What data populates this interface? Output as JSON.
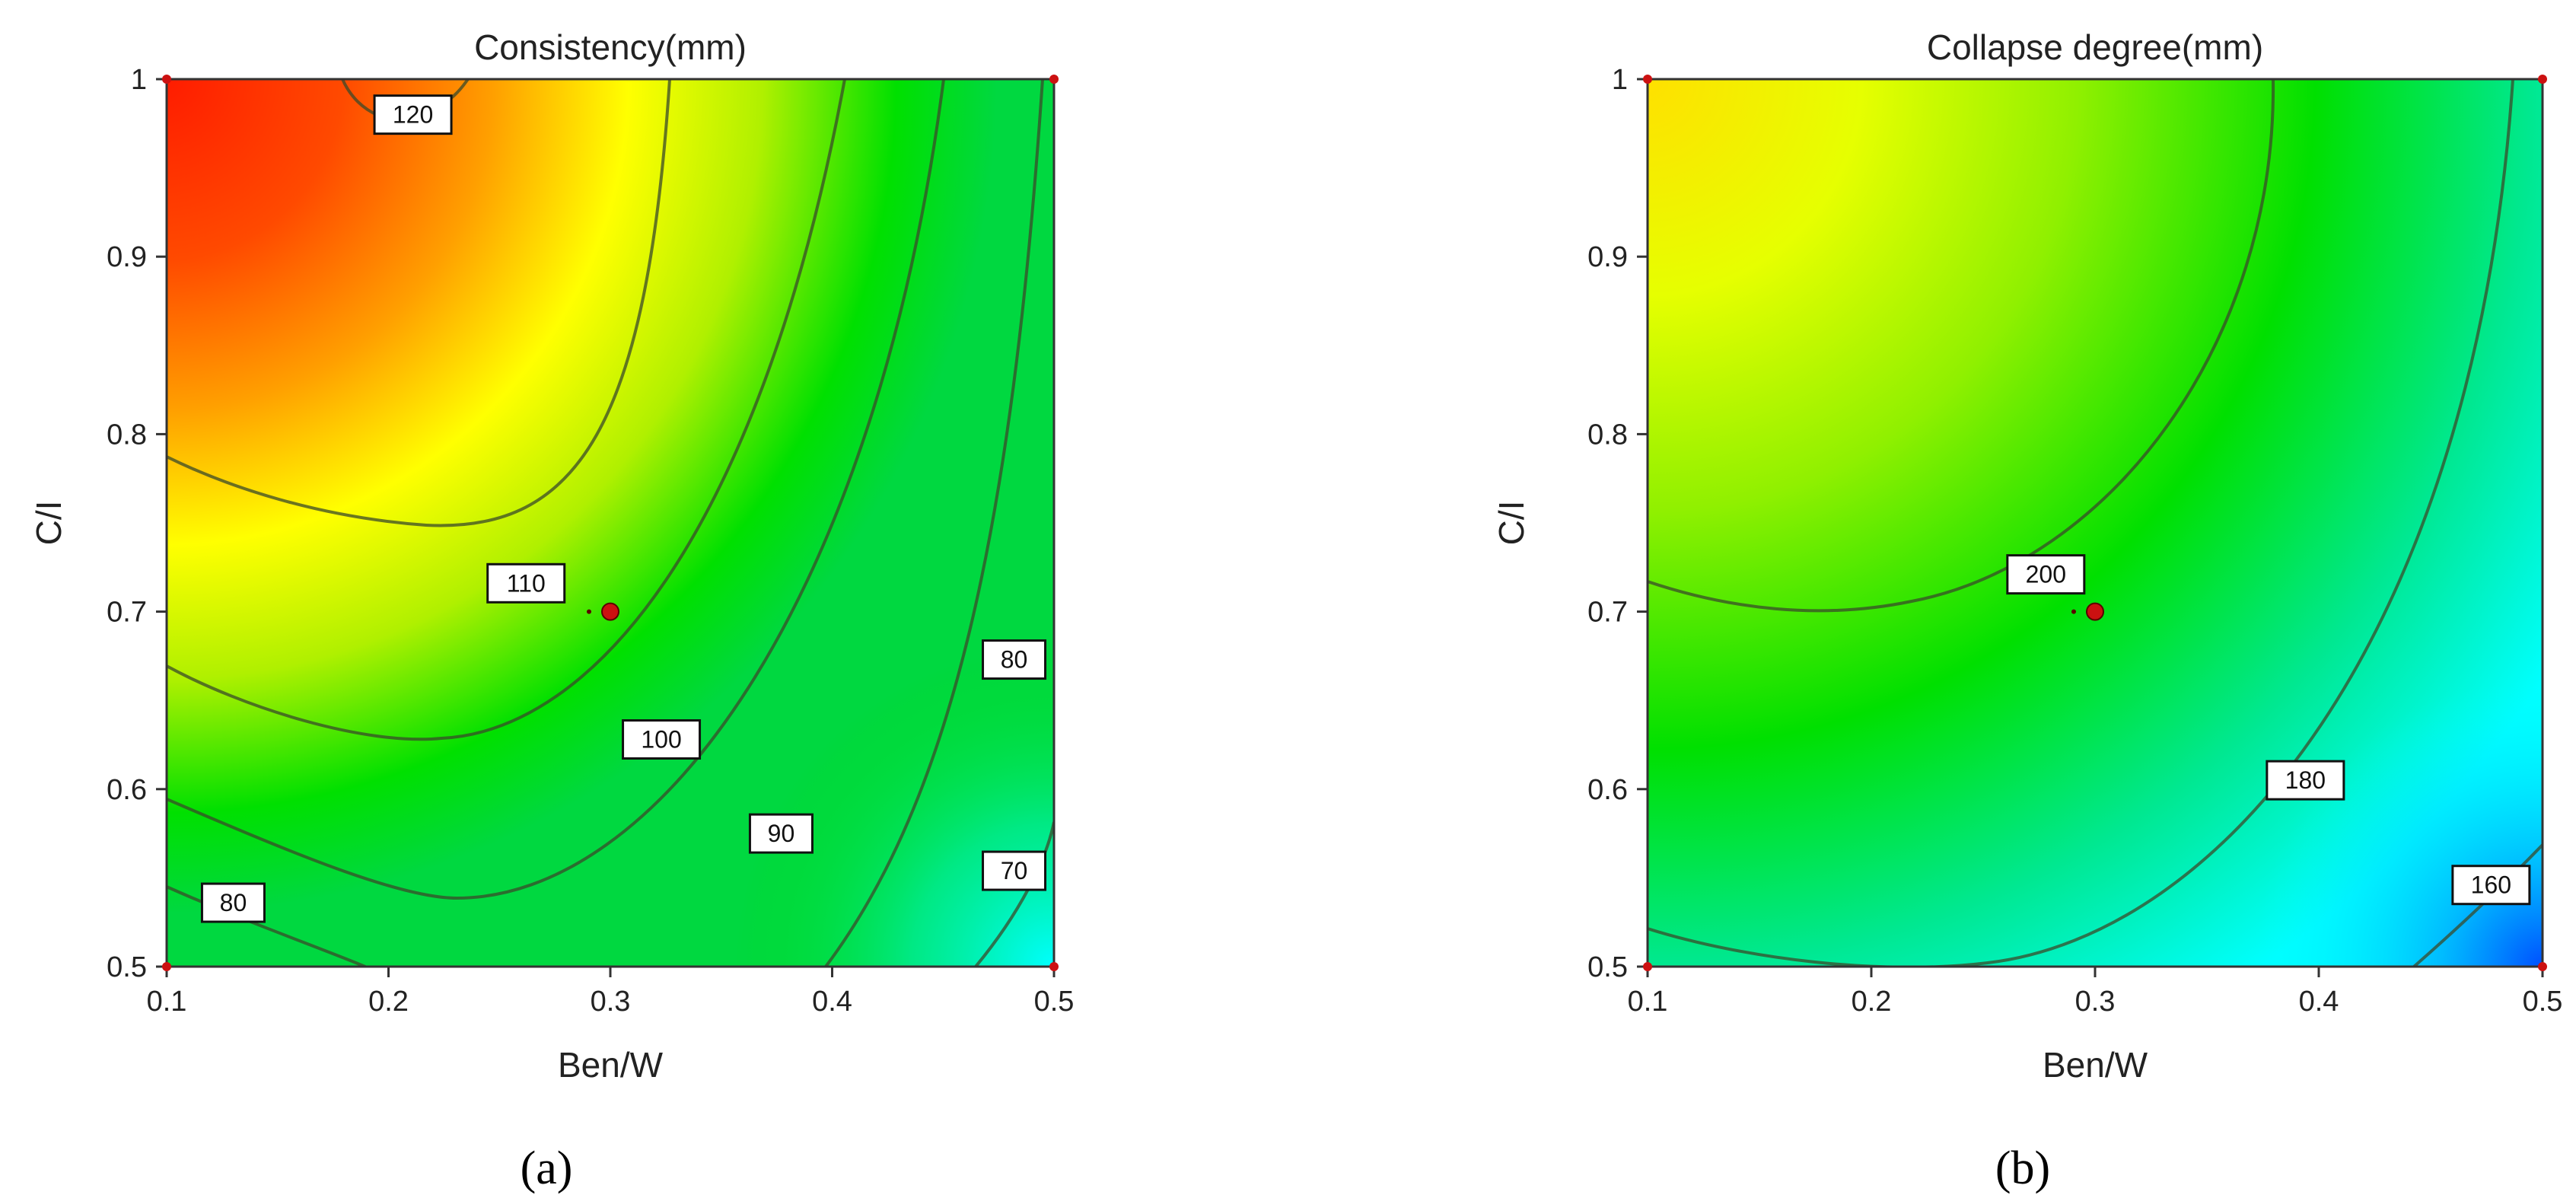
{
  "chart_data": [
    {
      "type": "heatmap",
      "subtype": "contour",
      "panel_label": "a",
      "title": "Consistency(mm)",
      "xlabel": "Ben/W",
      "ylabel": "C/I",
      "xlim": [
        0.1,
        0.5
      ],
      "ylim": [
        0.5,
        1.0
      ],
      "xticks": [
        "0.1",
        "0.2",
        "0.3",
        "0.4",
        "0.5"
      ],
      "yticks": [
        "0.5",
        "0.6",
        "0.7",
        "0.8",
        "0.9",
        "1"
      ],
      "colormap": [
        "#0050ff",
        "#00ffff",
        "#00e000",
        "#b0f000",
        "#ffff00",
        "#ffa000",
        "#ff1a00"
      ],
      "grid": false,
      "design_point": {
        "x": 0.3,
        "y": 0.7,
        "color": "#cc1111"
      },
      "contour_labels": [
        {
          "text": "120",
          "x": 0.211,
          "y": 0.98
        },
        {
          "text": "110",
          "x": 0.262,
          "y": 0.716
        },
        {
          "text": "100",
          "x": 0.323,
          "y": 0.628
        },
        {
          "text": "90",
          "x": 0.377,
          "y": 0.575
        },
        {
          "text": "80",
          "x": 0.13,
          "y": 0.536
        },
        {
          "text": "80",
          "x": 0.482,
          "y": 0.673
        },
        {
          "text": "70",
          "x": 0.482,
          "y": 0.554
        }
      ]
    },
    {
      "type": "heatmap",
      "subtype": "contour",
      "panel_label": "b",
      "title": "Collapse degree(mm)",
      "xlabel": "Ben/W",
      "ylabel": "C/I",
      "xlim": [
        0.1,
        0.5
      ],
      "ylim": [
        0.5,
        1.0
      ],
      "xticks": [
        "0.1",
        "0.2",
        "0.3",
        "0.4",
        "0.5"
      ],
      "yticks": [
        "0.5",
        "0.6",
        "0.7",
        "0.8",
        "0.9",
        "1"
      ],
      "colormap": [
        "#0050ff",
        "#00ffff",
        "#00e000",
        "#b0f000",
        "#ffff00",
        "#ffa000",
        "#ff1a00"
      ],
      "grid": false,
      "design_point": {
        "x": 0.3,
        "y": 0.7,
        "color": "#cc1111"
      },
      "contour_labels": [
        {
          "text": "200",
          "x": 0.278,
          "y": 0.721
        },
        {
          "text": "180",
          "x": 0.394,
          "y": 0.605
        },
        {
          "text": "160",
          "x": 0.477,
          "y": 0.546
        }
      ]
    }
  ],
  "panel_labels": [
    "(a)",
    "(b)"
  ]
}
